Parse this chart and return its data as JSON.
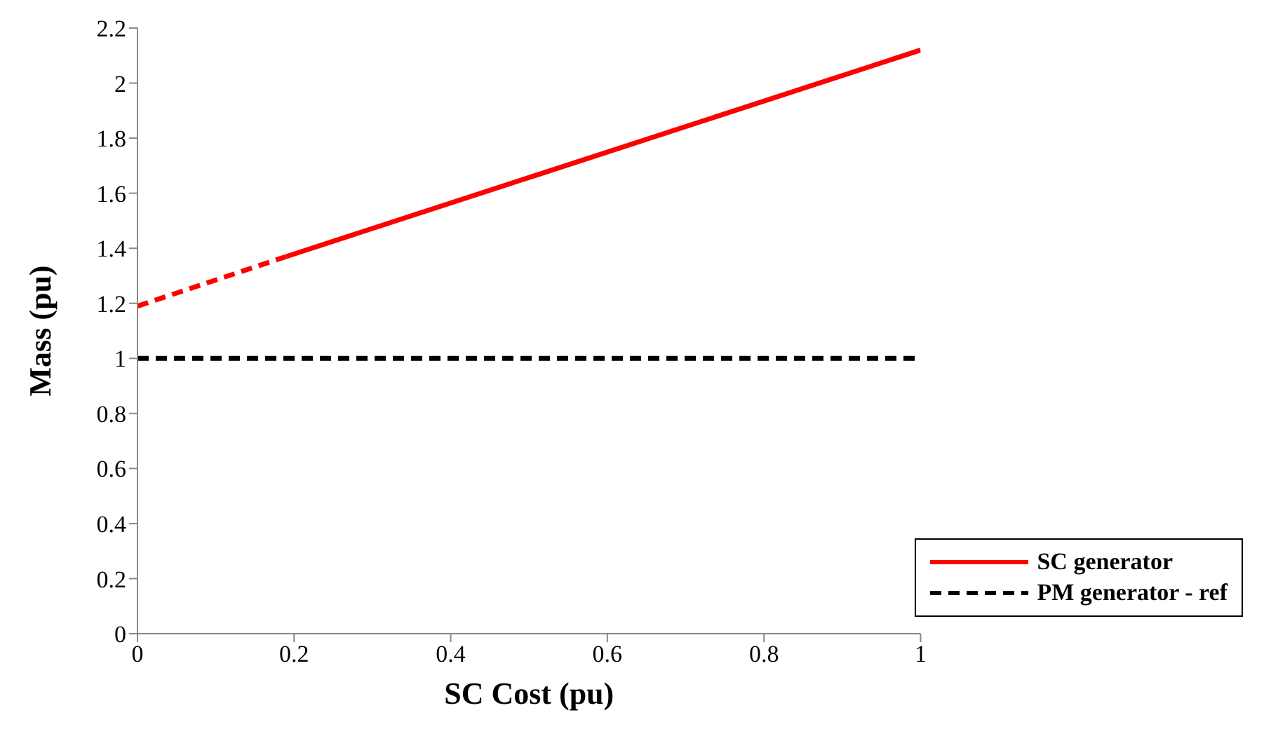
{
  "chart_data": {
    "type": "line",
    "xlabel": "SC Cost (pu)",
    "ylabel": "Mass (pu)",
    "xlim": [
      0,
      1
    ],
    "xticks": [
      0,
      0.2,
      0.4,
      0.6,
      0.8,
      1
    ],
    "ylim": [
      0,
      2.2
    ],
    "yticks": [
      0,
      0.2,
      0.4,
      0.6,
      0.8,
      1,
      1.2,
      1.4,
      1.6,
      1.8,
      2,
      2.2
    ],
    "grid": false,
    "legend": "bottom right",
    "marker": "none",
    "series": [
      {
        "name": "SC generator",
        "color": "#ff0000",
        "line_style": "solid",
        "x": [
          0.19,
          1
        ],
        "values": [
          1.37,
          2.12
        ]
      },
      {
        "color": "#ff0000",
        "line_style": "dashed",
        "x": [
          0,
          0.19
        ],
        "values": [
          1.19,
          1.37
        ]
      },
      {
        "name": "PM generator - ref",
        "color": "#000000",
        "line_style": "dashed",
        "x": [
          0,
          1
        ],
        "values": [
          1,
          1
        ]
      }
    ]
  }
}
